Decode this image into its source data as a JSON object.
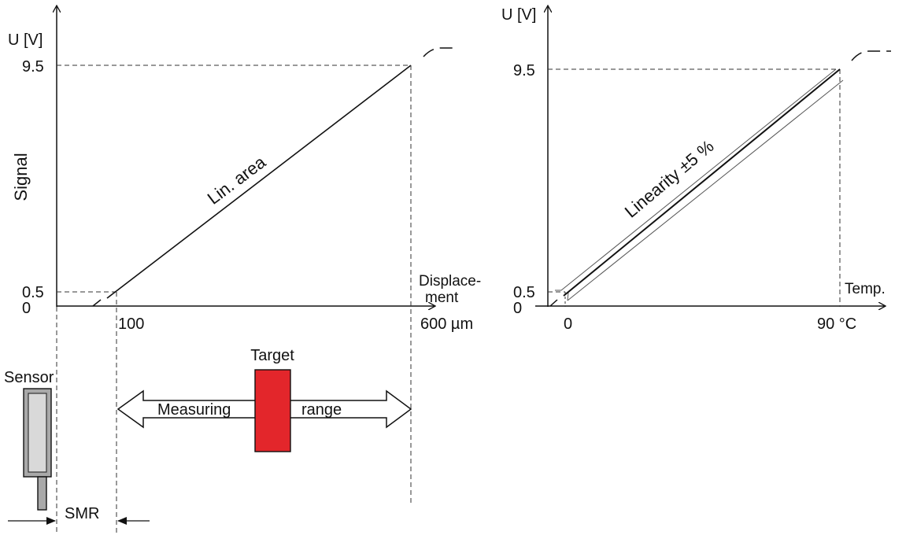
{
  "left_chart": {
    "y_axis_label": "U [V]",
    "y_axis_title": "Signal",
    "y_ticks": [
      "9.5",
      "0.5",
      "0"
    ],
    "x_axis_title_line1": "Displace-",
    "x_axis_title_line2": "ment",
    "x_ticks": [
      "100",
      "600 µm"
    ],
    "curve_label": "Lin. area"
  },
  "right_chart": {
    "y_axis_label": "U [V]",
    "y_ticks": [
      "9.5",
      "0.5",
      "0"
    ],
    "x_axis_title": "Temp.",
    "x_ticks": [
      "0",
      "90 °C"
    ],
    "band_label": "Linearity ±5 %"
  },
  "setup": {
    "sensor_label": "Sensor",
    "target_label": "Target",
    "arrow_label_left": "Measuring",
    "arrow_label_right": "range",
    "smr_label": "SMR",
    "colors": {
      "target": "#e3262b",
      "sensor_body": "#a9a9a9",
      "sensor_light": "#d6d6d6"
    }
  }
}
